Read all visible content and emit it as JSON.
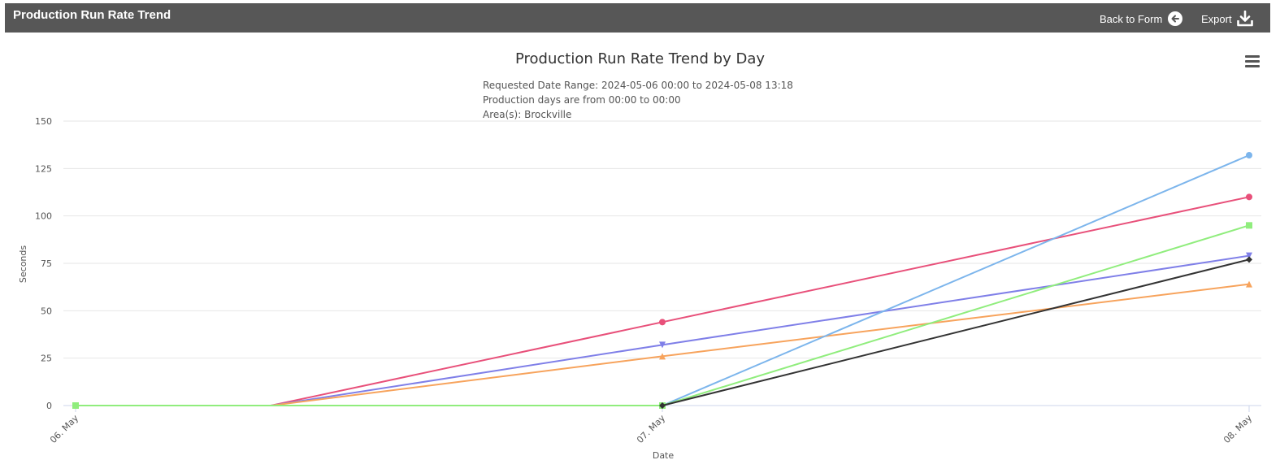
{
  "header": {
    "title": "Production Run Rate Trend",
    "back_label": "Back to Form",
    "export_label": "Export"
  },
  "chart_data": {
    "type": "line",
    "title": "Production Run Rate Trend by Day",
    "subtitle": [
      "Requested Date Range: 2024-05-06 00:00 to 2024-05-08 13:18",
      "Production days are from 00:00 to 00:00",
      "Area(s): Brockville"
    ],
    "xlabel": "Date",
    "ylabel": "Seconds",
    "categories": [
      "06. May",
      "07. May",
      "08. May"
    ],
    "ylim": [
      0,
      150
    ],
    "yticks": [
      0,
      25,
      50,
      75,
      100,
      125,
      150
    ],
    "grid": true,
    "series": [
      {
        "color": "#e8507a",
        "marker": "circle",
        "points": [
          [
            0,
            0
          ],
          [
            0.333,
            0
          ],
          [
            1,
            44
          ],
          [
            2,
            110
          ]
        ]
      },
      {
        "color": "#7f7fe8",
        "marker": "triangle-down",
        "points": [
          [
            0,
            0
          ],
          [
            0.333,
            0
          ],
          [
            1,
            32
          ],
          [
            2,
            79
          ]
        ]
      },
      {
        "color": "#f7a35c",
        "marker": "triangle",
        "points": [
          [
            0,
            0
          ],
          [
            0.333,
            0
          ],
          [
            1,
            26
          ],
          [
            2,
            64
          ]
        ]
      },
      {
        "color": "#7cb5ec",
        "marker": "circle",
        "points": [
          [
            1,
            0
          ],
          [
            2,
            132
          ]
        ]
      },
      {
        "color": "#90ed7d",
        "marker": "square",
        "points": [
          [
            0,
            0
          ],
          [
            1,
            0
          ],
          [
            2,
            95
          ]
        ]
      },
      {
        "color": "#333333",
        "marker": "diamond",
        "points": [
          [
            1,
            0
          ],
          [
            2,
            77
          ]
        ]
      }
    ]
  }
}
